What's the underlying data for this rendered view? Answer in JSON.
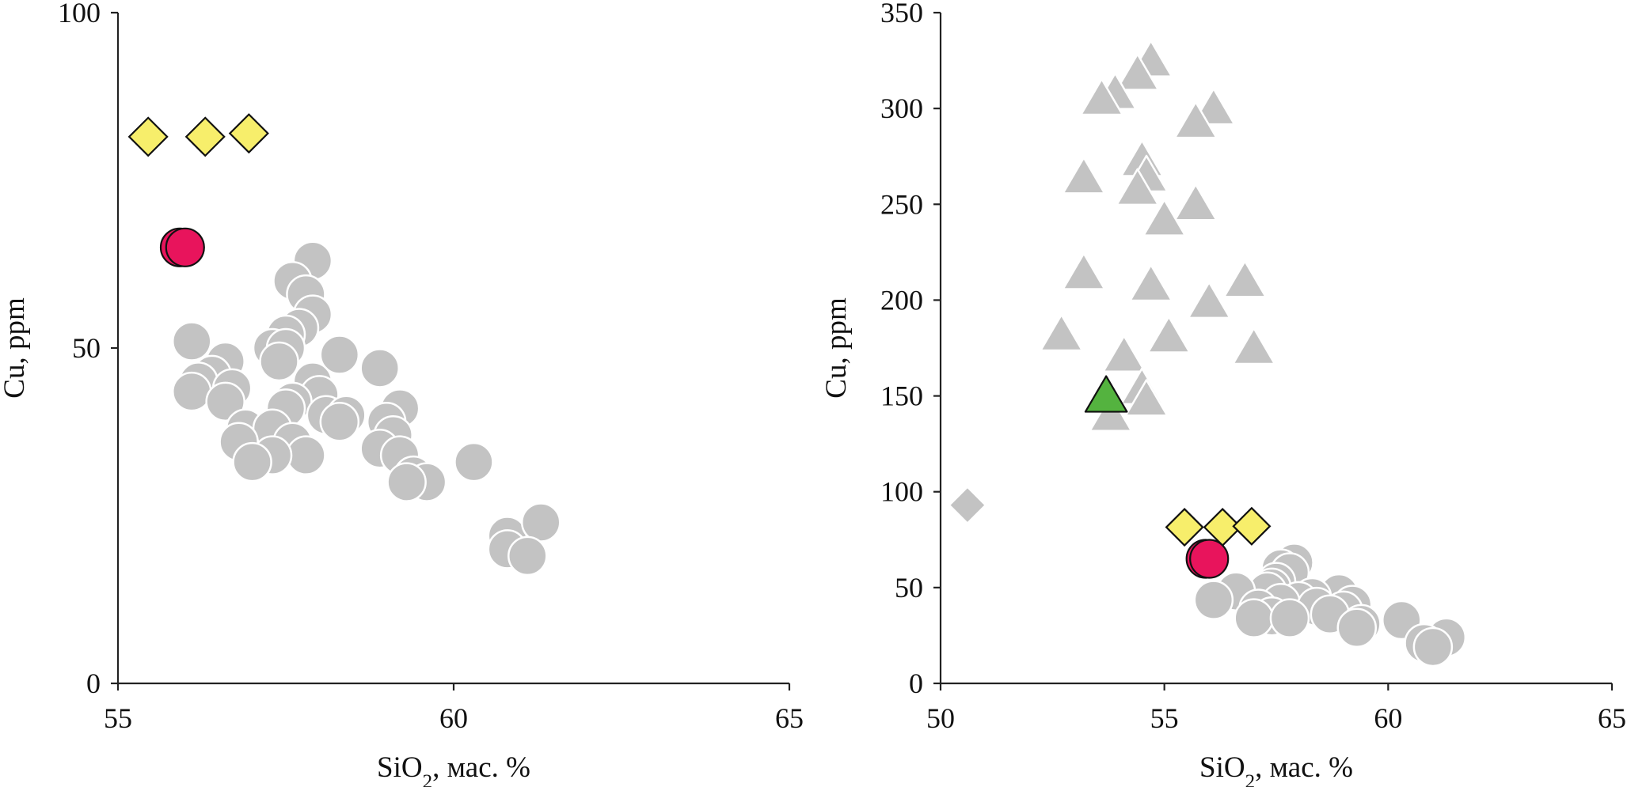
{
  "colors": {
    "gray_marker": "#c3c3c3",
    "gray_edge": "#ffffff",
    "diamond": "#f7ee6b",
    "circle": "#e8145c",
    "triangle_green": "#54b33f",
    "dark_edge": "#111111"
  },
  "chart_data": [
    {
      "type": "scatter",
      "title": "",
      "xlabel": "SiO2, мас. %",
      "ylabel": "Cu, ppm",
      "xlim": [
        55,
        65
      ],
      "ylim": [
        0,
        100
      ],
      "xticks": [
        "55",
        "60",
        "65"
      ],
      "yticks": [
        "0",
        "50",
        "100"
      ],
      "grid": false,
      "series": [
        {
          "marker": "circle",
          "color": "#c3c3c3",
          "points": [
            [
              57.9,
              63
            ],
            [
              57.6,
              60
            ],
            [
              57.8,
              58
            ],
            [
              57.9,
              55
            ],
            [
              57.7,
              53
            ],
            [
              57.5,
              52
            ],
            [
              56.1,
              51
            ],
            [
              57.3,
              50
            ],
            [
              57.5,
              50
            ],
            [
              58.3,
              49
            ],
            [
              56.6,
              48
            ],
            [
              57.4,
              48
            ],
            [
              58.9,
              47
            ],
            [
              56.4,
              46
            ],
            [
              56.2,
              45
            ],
            [
              57.9,
              45
            ],
            [
              56.7,
              44
            ],
            [
              56.1,
              43.5
            ],
            [
              58.0,
              43
            ],
            [
              56.6,
              42
            ],
            [
              57.6,
              42
            ],
            [
              57.5,
              41
            ],
            [
              59.2,
              41
            ],
            [
              58.1,
              40
            ],
            [
              58.4,
              40
            ],
            [
              58.3,
              39
            ],
            [
              59.0,
              39
            ],
            [
              56.9,
              38
            ],
            [
              57.3,
              38
            ],
            [
              59.1,
              37
            ],
            [
              56.8,
              36
            ],
            [
              57.6,
              36
            ],
            [
              58.9,
              35
            ],
            [
              57.8,
              34
            ],
            [
              57.3,
              34
            ],
            [
              59.2,
              34
            ],
            [
              57.0,
              33
            ],
            [
              60.3,
              33
            ],
            [
              59.4,
              31
            ],
            [
              59.6,
              30
            ],
            [
              59.3,
              30
            ],
            [
              60.8,
              22
            ],
            [
              61.3,
              24
            ],
            [
              60.8,
              20
            ],
            [
              61.1,
              19
            ]
          ]
        },
        {
          "marker": "diamond",
          "color": "#f7ee6b",
          "points": [
            [
              55.45,
              81.5
            ],
            [
              56.3,
              81.5
            ],
            [
              56.95,
              82
            ]
          ]
        },
        {
          "marker": "circle",
          "color": "#e8145c",
          "points": [
            [
              55.92,
              65
            ],
            [
              56.0,
              65
            ]
          ]
        }
      ]
    },
    {
      "type": "scatter",
      "title": "",
      "xlabel": "SiO2, мас. %",
      "ylabel": "Cu, ppm",
      "xlim": [
        50,
        65
      ],
      "ylim": [
        0,
        350
      ],
      "xticks": [
        "50",
        "55",
        "60",
        "65"
      ],
      "yticks": [
        "0",
        "50",
        "100",
        "150",
        "200",
        "250",
        "300",
        "350"
      ],
      "grid": false,
      "series": [
        {
          "marker": "triangle",
          "color": "#c3c3c3",
          "points": [
            [
              54.7,
              325
            ],
            [
              54.4,
              318
            ],
            [
              53.9,
              308
            ],
            [
              53.6,
              305
            ],
            [
              56.1,
              300
            ],
            [
              55.7,
              293
            ],
            [
              54.5,
              273
            ],
            [
              54.6,
              265
            ],
            [
              53.2,
              264
            ],
            [
              54.4,
              258
            ],
            [
              55.7,
              250
            ],
            [
              55.0,
              242
            ],
            [
              53.2,
              214
            ],
            [
              56.8,
              210
            ],
            [
              54.7,
              208
            ],
            [
              56.0,
              199
            ],
            [
              52.7,
              182
            ],
            [
              55.1,
              181
            ],
            [
              57.0,
              175
            ],
            [
              54.1,
              171
            ],
            [
              54.5,
              154
            ],
            [
              54.6,
              148
            ],
            [
              53.8,
              140
            ]
          ]
        },
        {
          "marker": "diamond",
          "color": "#c3c3c3",
          "points": [
            [
              50.6,
              93
            ]
          ]
        },
        {
          "marker": "circle",
          "color": "#c3c3c3",
          "points": [
            [
              57.9,
              63
            ],
            [
              57.6,
              60
            ],
            [
              57.8,
              58
            ],
            [
              57.5,
              53
            ],
            [
              57.4,
              50
            ],
            [
              57.3,
              48
            ],
            [
              58.9,
              47
            ],
            [
              58.3,
              45
            ],
            [
              56.6,
              48
            ],
            [
              58.0,
              43
            ],
            [
              59.2,
              41
            ],
            [
              56.1,
              43.5
            ],
            [
              57.6,
              42
            ],
            [
              58.4,
              40
            ],
            [
              57.1,
              39
            ],
            [
              59.0,
              38
            ],
            [
              58.7,
              36
            ],
            [
              57.4,
              35
            ],
            [
              57.0,
              34
            ],
            [
              57.8,
              34
            ],
            [
              60.3,
              33
            ],
            [
              59.4,
              31
            ],
            [
              59.3,
              29
            ],
            [
              61.3,
              24
            ],
            [
              60.8,
              21
            ],
            [
              61.0,
              19
            ]
          ]
        },
        {
          "marker": "diamond",
          "color": "#f7ee6b",
          "points": [
            [
              55.45,
              81.5
            ],
            [
              56.3,
              81.5
            ],
            [
              56.95,
              82
            ]
          ]
        },
        {
          "marker": "circle",
          "color": "#e8145c",
          "points": [
            [
              55.92,
              65
            ],
            [
              56.0,
              65
            ]
          ]
        },
        {
          "marker": "triangle",
          "color": "#54b33f",
          "points": [
            [
              53.7,
              150
            ]
          ]
        }
      ]
    }
  ]
}
